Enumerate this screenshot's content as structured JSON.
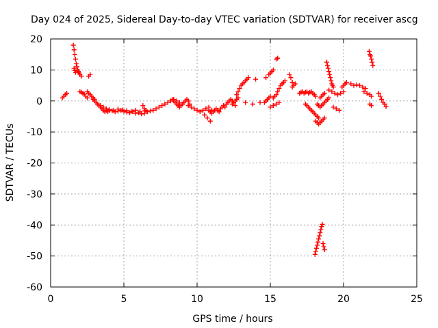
{
  "chart_data": {
    "type": "scatter",
    "title": "Day 024 of 2025, Sidereal Day-to-day VTEC variation (SDTVAR) for receiver ascg",
    "xlabel": "GPS time / hours",
    "ylabel": "SDTVAR / TECUs",
    "xlim": [
      0,
      25
    ],
    "ylim": [
      -60,
      20
    ],
    "xticks": [
      0,
      5,
      10,
      15,
      20,
      25
    ],
    "yticks": [
      -60,
      -50,
      -40,
      -30,
      -20,
      -10,
      0,
      10,
      20
    ],
    "grid": true,
    "marker": "+",
    "color": "#ff0000",
    "series": [
      {
        "name": "SDTVAR",
        "x": [
          0.8,
          0.9,
          1.0,
          1.1,
          1.55,
          1.6,
          1.65,
          1.7,
          1.75,
          1.8,
          1.85,
          1.9,
          1.95,
          2.0,
          2.1,
          1.6,
          1.65,
          1.7,
          2.0,
          2.1,
          2.2,
          2.3,
          2.4,
          2.5,
          2.6,
          2.7,
          2.5,
          2.6,
          2.7,
          2.8,
          2.9,
          3.0,
          2.9,
          3.0,
          3.1,
          3.2,
          3.3,
          3.4,
          3.5,
          3.6,
          3.7,
          3.8,
          3.9,
          4.0,
          4.2,
          4.4,
          4.6,
          4.8,
          5.0,
          5.2,
          5.4,
          5.6,
          5.8,
          6.0,
          6.2,
          6.4,
          3.2,
          3.4,
          3.6,
          3.8,
          4.0,
          4.3,
          4.6,
          4.9,
          5.2,
          5.5,
          5.8,
          6.1,
          6.4,
          6.3,
          6.4,
          6.5,
          6.6,
          6.8,
          7.0,
          7.2,
          7.4,
          7.6,
          7.8,
          8.0,
          8.2,
          8.4,
          8.6,
          8.8,
          8.3,
          8.4,
          8.5,
          8.6,
          8.7,
          8.8,
          8.9,
          9.0,
          9.1,
          9.2,
          9.3,
          9.4,
          9.5,
          9.4,
          9.6,
          9.8,
          10.0,
          10.2,
          10.4,
          10.6,
          10.8,
          11.0,
          10.8,
          10.9,
          11.0,
          11.1,
          11.2,
          11.3,
          11.4,
          11.5,
          11.6,
          11.7,
          11.8,
          11.9,
          12.0,
          12.1,
          12.2,
          12.3,
          12.4,
          12.5,
          12.6,
          10.5,
          10.7,
          10.9,
          12.4,
          12.5,
          12.6,
          12.7,
          12.8,
          12.7,
          12.8,
          12.9,
          13.0,
          13.1,
          13.2,
          13.3,
          13.4,
          13.5,
          14.0,
          14.7,
          14.9,
          15.0,
          15.1,
          15.2,
          14.6,
          14.7,
          14.8,
          14.9,
          15.0,
          13.3,
          13.8,
          14.3,
          15.4,
          15.5,
          15.2,
          15.3,
          15.4,
          15.5,
          15.6,
          15.7,
          15.8,
          15.9,
          16.0,
          15.0,
          15.2,
          15.4,
          15.6,
          16.3,
          16.4,
          16.5,
          16.5,
          16.6,
          16.7,
          17.0,
          17.1,
          17.2,
          17.3,
          17.4,
          17.5,
          17.6,
          17.7,
          17.8,
          17.9,
          18.0,
          18.1,
          17.4,
          17.5,
          17.6,
          17.7,
          17.8,
          17.9,
          18.0,
          18.1,
          18.2,
          18.3,
          18.1,
          18.2,
          18.3,
          18.4,
          18.5,
          18.6,
          18.7,
          18.2,
          18.3,
          18.4,
          18.5,
          18.6,
          18.7,
          18.8,
          18.9,
          19.0,
          18.4,
          18.5,
          18.6,
          18.7,
          18.05,
          18.1,
          18.15,
          18.2,
          18.25,
          18.3,
          18.35,
          18.4,
          18.45,
          18.5,
          18.55,
          18.6,
          18.65,
          18.7,
          18.85,
          18.9,
          18.95,
          19.0,
          19.05,
          19.1,
          19.15,
          19.2,
          19.25,
          19.3,
          19.0,
          19.2,
          19.4,
          19.6,
          19.8,
          20.0,
          19.3,
          19.5,
          19.7,
          19.9,
          20.0,
          20.1,
          20.2,
          20.5,
          20.7,
          20.9,
          21.1,
          21.3,
          21.5,
          21.4,
          21.6,
          21.8,
          21.9,
          21.75,
          21.8,
          21.85,
          21.9,
          21.95,
          22.0,
          21.8,
          21.9,
          22.4,
          22.5,
          22.6,
          22.7,
          22.8,
          22.9
        ],
        "y": [
          1.0,
          1.5,
          2.0,
          2.5,
          18.0,
          16.5,
          15.0,
          13.5,
          12.0,
          11.0,
          10.0,
          9.5,
          9.0,
          8.5,
          8.0,
          10.5,
          9.8,
          9.2,
          3.0,
          2.8,
          2.5,
          2.2,
          1.5,
          1.0,
          8.0,
          8.5,
          3.0,
          2.5,
          2.0,
          1.5,
          1.0,
          0.5,
          0.5,
          0.0,
          -0.5,
          -1.0,
          -1.5,
          -2.0,
          -2.5,
          -3.0,
          -3.5,
          -3.0,
          -3.5,
          -3.0,
          -3.2,
          -3.5,
          -3.3,
          -3.0,
          -3.4,
          -3.6,
          -3.8,
          -3.5,
          -4.0,
          -3.8,
          -4.2,
          -4.0,
          -1.0,
          -1.5,
          -2.0,
          -2.5,
          -2.8,
          -3.0,
          -2.6,
          -2.9,
          -3.1,
          -3.3,
          -3.0,
          -3.4,
          -3.2,
          -1.5,
          -2.5,
          -3.0,
          -3.5,
          -3.2,
          -3.0,
          -2.5,
          -2.0,
          -1.5,
          -1.0,
          -0.5,
          0.0,
          0.5,
          0.0,
          -0.5,
          0.5,
          0.0,
          -0.5,
          -1.0,
          -1.5,
          -2.0,
          -1.5,
          -1.0,
          -0.5,
          0.0,
          0.5,
          0.0,
          -1.0,
          -1.5,
          -2.0,
          -2.5,
          -3.0,
          -3.5,
          -3.0,
          -2.5,
          -2.0,
          -3.0,
          -3.0,
          -3.5,
          -4.0,
          -3.5,
          -3.0,
          -2.5,
          -3.0,
          -3.5,
          -2.5,
          -2.0,
          -1.5,
          -2.0,
          -1.0,
          -0.5,
          0.0,
          0.5,
          0.0,
          -0.5,
          -1.5,
          -4.5,
          -5.5,
          -6.5,
          -1.0,
          -0.5,
          0.0,
          0.5,
          1.0,
          2.0,
          3.0,
          4.0,
          5.0,
          5.5,
          6.0,
          6.5,
          7.0,
          7.5,
          7.0,
          7.5,
          8.5,
          9.0,
          9.5,
          10.0,
          -0.5,
          0.0,
          0.5,
          1.0,
          1.5,
          -0.5,
          -1.0,
          -0.5,
          13.5,
          13.8,
          1.0,
          1.5,
          2.0,
          3.0,
          4.0,
          5.0,
          5.5,
          6.0,
          6.5,
          -2.0,
          -1.5,
          -1.0,
          -0.5,
          8.5,
          7.5,
          6.0,
          4.5,
          5.0,
          5.5,
          2.5,
          2.8,
          3.0,
          2.5,
          2.8,
          3.0,
          2.5,
          2.8,
          3.0,
          2.5,
          2.0,
          1.5,
          -1.0,
          -1.5,
          -2.0,
          -2.5,
          -3.0,
          -3.5,
          -4.0,
          -4.5,
          -5.0,
          -5.5,
          -6.5,
          -7.0,
          -7.5,
          -7.0,
          -6.5,
          -6.0,
          -5.5,
          -1.0,
          -1.5,
          -2.0,
          -1.5,
          -1.0,
          -0.5,
          0.0,
          0.5,
          1.0,
          1.0,
          1.5,
          2.0,
          2.5,
          -49.5,
          -48.5,
          -47.5,
          -46.5,
          -45.5,
          -44.5,
          -43.5,
          -42.5,
          -41.5,
          -40.5,
          -39.8,
          -46.0,
          -47.0,
          -48.0,
          12.5,
          11.5,
          10.5,
          9.5,
          8.5,
          7.5,
          6.5,
          5.5,
          5.0,
          4.5,
          3.5,
          3.0,
          2.5,
          2.0,
          2.5,
          3.0,
          -2.0,
          -2.5,
          -3.0,
          4.5,
          5.0,
          5.5,
          6.0,
          5.5,
          5.0,
          5.2,
          5.0,
          4.5,
          4.0,
          3.0,
          2.5,
          2.0,
          1.5,
          16.0,
          15.0,
          14.5,
          13.5,
          12.5,
          11.5,
          -1.0,
          -1.5,
          2.5,
          1.5,
          0.5,
          -0.5,
          -1.0,
          -1.8
        ]
      }
    ]
  }
}
